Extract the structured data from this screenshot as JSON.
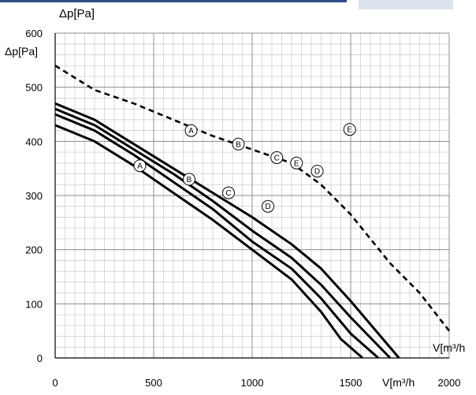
{
  "header": {
    "accent_color": "#2f4a86",
    "tab_color": "#dce3ee"
  },
  "chart_data": {
    "type": "line",
    "top_ylabel": "Δp[Pa]",
    "ylabel": "Δp[Pa]",
    "xlabel_axis": "V[m³/h",
    "xlabel_bottom": "V[m³/h",
    "xlim": [
      0,
      2000
    ],
    "ylim": [
      0,
      600
    ],
    "x_ticks": [
      0,
      500,
      1000,
      1500,
      2000
    ],
    "y_ticks": [
      0,
      100,
      200,
      300,
      400,
      500,
      600
    ],
    "grid": true,
    "series": [
      {
        "name": "A",
        "style": "solid",
        "x": [
          0,
          200,
          400,
          600,
          800,
          1000,
          1200,
          1350,
          1450,
          1560
        ],
        "y": [
          430,
          400,
          355,
          305,
          255,
          200,
          145,
          85,
          35,
          0
        ],
        "label_at": [
          430,
          355
        ]
      },
      {
        "name": "B",
        "style": "solid",
        "x": [
          0,
          200,
          400,
          600,
          800,
          1000,
          1200,
          1350,
          1500,
          1640
        ],
        "y": [
          450,
          420,
          375,
          325,
          275,
          215,
          165,
          110,
          45,
          0
        ],
        "label_at": [
          680,
          330
        ]
      },
      {
        "name": "C",
        "style": "solid",
        "x": [
          0,
          200,
          400,
          600,
          800,
          1000,
          1200,
          1350,
          1500,
          1700
        ],
        "y": [
          460,
          430,
          385,
          340,
          290,
          235,
          185,
          135,
          75,
          0
        ],
        "label_at": [
          880,
          305
        ]
      },
      {
        "name": "D",
        "style": "solid",
        "x": [
          0,
          200,
          400,
          600,
          800,
          1000,
          1200,
          1350,
          1500,
          1745
        ],
        "y": [
          470,
          440,
          395,
          350,
          305,
          260,
          210,
          165,
          105,
          0
        ],
        "label_at": [
          1080,
          280
        ]
      },
      {
        "name": "E",
        "style": "dashed",
        "x": [
          0,
          200,
          400,
          600,
          800,
          1000,
          1200,
          1350,
          1500,
          1700,
          1850,
          2000
        ],
        "y": [
          540,
          495,
          470,
          440,
          410,
          385,
          360,
          320,
          265,
          175,
          120,
          50
        ]
      }
    ],
    "dashed_labels": [
      {
        "text": "A",
        "at": [
          690,
          420
        ]
      },
      {
        "text": "B",
        "at": [
          930,
          395
        ]
      },
      {
        "text": "C",
        "at": [
          1125,
          370
        ]
      },
      {
        "text": "E",
        "at": [
          1225,
          360
        ]
      },
      {
        "text": "D",
        "at": [
          1330,
          345
        ]
      },
      {
        "text": "E",
        "at": [
          1495,
          422
        ]
      }
    ]
  }
}
